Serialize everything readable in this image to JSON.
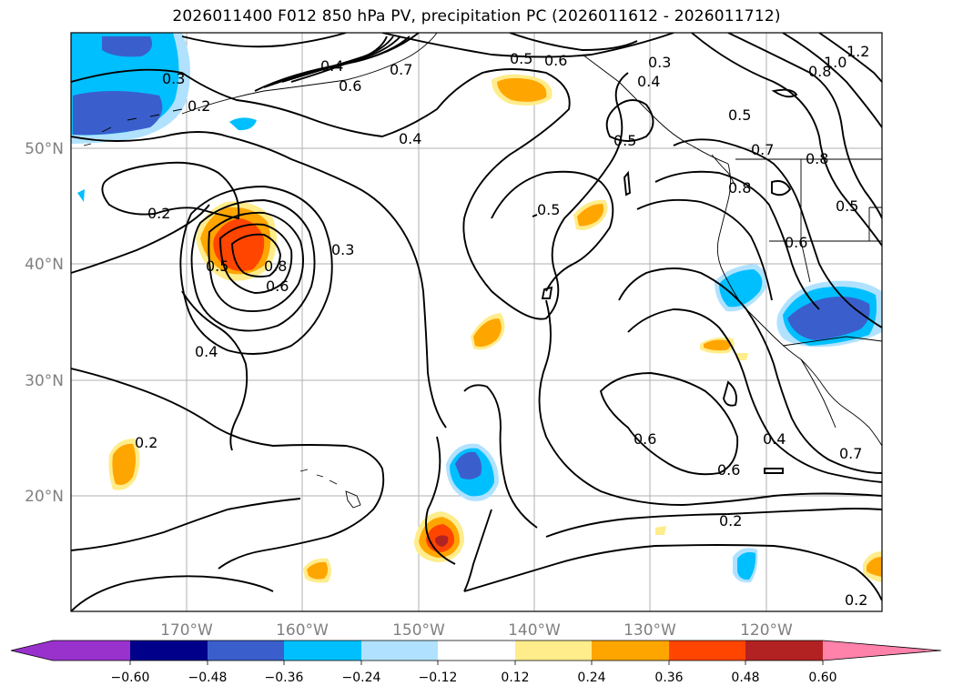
{
  "title": "2026011400 F012 850 hPa PV, precipitation PC (2026011612 - 2026011712)",
  "latitude_labels": [
    "50°N",
    "40°N",
    "30°N",
    "20°N"
  ],
  "longitude_labels": [
    "170°W",
    "160°W",
    "150°W",
    "140°W",
    "130°W",
    "120°W"
  ],
  "colorbar": {
    "ticks": [
      "−0.60",
      "−0.48",
      "−0.36",
      "−0.24",
      "−0.12",
      "0.12",
      "0.24",
      "0.36",
      "0.48",
      "0.60"
    ],
    "colors": [
      "#9932cc",
      "#00008b",
      "#3a5fcd",
      "#00bfff",
      "#b0e2ff",
      "#ffffff",
      "#ffec8b",
      "#ffa500",
      "#ff4500",
      "#b22222",
      "#ff82ab"
    ]
  },
  "contour_labels": [
    "0.3",
    "0.2",
    "0.4",
    "0.6",
    "0.4",
    "0.5",
    "0.6",
    "0.7",
    "0.4",
    "0.3",
    "1.0",
    "0.8",
    "1.2",
    "0.5",
    "0.5",
    "0.7",
    "0.8",
    "0.6",
    "0.5",
    "0.8",
    "0.2",
    "0.5",
    "0.8",
    "0.6",
    "0.3",
    "0.4",
    "0.5",
    "0.6",
    "0.6",
    "0.2",
    "0.2",
    "0.4",
    "0.7",
    "0.2"
  ]
}
